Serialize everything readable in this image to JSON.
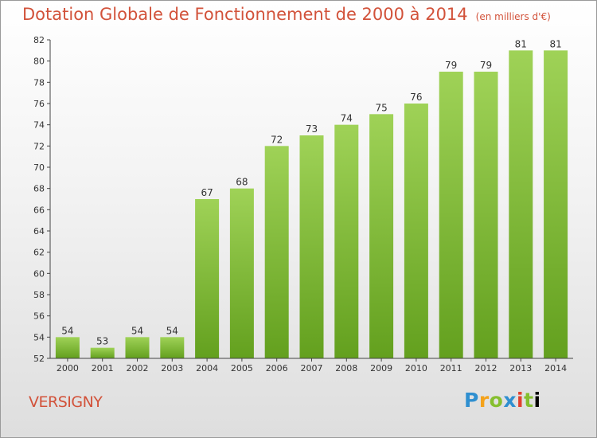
{
  "title": "Dotation Globale de Fonctionnement de 2000 à 2014",
  "subtitle": "(en milliers d'€)",
  "town": "VERSIGNY",
  "logo": {
    "letters": [
      "P",
      "r",
      "o",
      "x",
      "i",
      "t",
      "i"
    ]
  },
  "colors": {
    "title": "#d2523a",
    "bar_top": "#9fd257",
    "bar_bottom": "#63a01e"
  },
  "chart_data": {
    "type": "bar",
    "title": "Dotation Globale de Fonctionnement de 2000 à 2014",
    "subtitle": "(en milliers d'€)",
    "categories": [
      "2000",
      "2001",
      "2002",
      "2003",
      "2004",
      "2005",
      "2006",
      "2007",
      "2008",
      "2009",
      "2010",
      "2011",
      "2012",
      "2013",
      "2014"
    ],
    "values": [
      54,
      53,
      54,
      54,
      67,
      68,
      72,
      73,
      74,
      75,
      76,
      79,
      79,
      81,
      81
    ],
    "ylim": [
      52,
      82
    ],
    "yticks": [
      52,
      54,
      56,
      58,
      60,
      62,
      64,
      66,
      68,
      70,
      72,
      74,
      76,
      78,
      80,
      82
    ],
    "grid": false,
    "legend": "none"
  }
}
